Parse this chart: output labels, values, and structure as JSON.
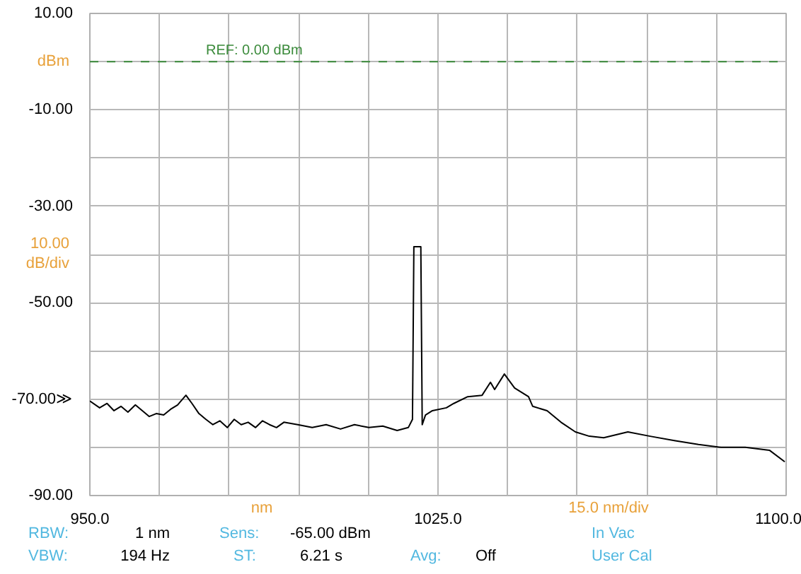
{
  "chart_data": {
    "type": "line",
    "x": [
      950.0,
      952.1,
      953.7,
      955.2,
      956.7,
      958.2,
      959.8,
      961.3,
      962.8,
      964.3,
      965.9,
      967.4,
      968.9,
      970.7,
      972.0,
      973.5,
      975.0,
      976.5,
      978.0,
      979.6,
      981.1,
      982.6,
      984.1,
      985.7,
      987.2,
      988.7,
      990.2,
      991.8,
      994.8,
      997.9,
      1000.9,
      1004.0,
      1007.0,
      1010.1,
      1013.1,
      1016.2,
      1018.6,
      1019.5,
      1019.8,
      1021.3,
      1021.6,
      1022.3,
      1023.8,
      1026.8,
      1028.4,
      1031.4,
      1034.5,
      1036.3,
      1037.2,
      1039.3,
      1041.5,
      1044.5,
      1045.4,
      1048.5,
      1051.5,
      1054.6,
      1057.6,
      1060.7,
      1065.9,
      1070.7,
      1075.9,
      1081.1,
      1086.0,
      1091.2,
      1096.4,
      1099.7
    ],
    "series": [
      {
        "color": "#000000",
        "values": [
          -70.4,
          -71.8,
          -70.9,
          -72.4,
          -71.5,
          -72.7,
          -71.2,
          -72.4,
          -73.6,
          -73.0,
          -73.3,
          -72.1,
          -71.2,
          -69.2,
          -70.9,
          -73.0,
          -74.2,
          -75.3,
          -74.5,
          -75.9,
          -74.2,
          -75.3,
          -74.8,
          -75.9,
          -74.5,
          -75.3,
          -75.9,
          -74.8,
          -75.3,
          -75.9,
          -75.3,
          -76.2,
          -75.3,
          -75.9,
          -75.6,
          -76.5,
          -75.9,
          -74.2,
          -38.4,
          -38.4,
          -75.3,
          -73.3,
          -72.4,
          -71.8,
          -70.9,
          -69.5,
          -69.2,
          -66.5,
          -68.0,
          -64.8,
          -67.7,
          -69.5,
          -71.5,
          -72.4,
          -74.8,
          -76.8,
          -77.7,
          -78.0,
          -76.8,
          -77.7,
          -78.6,
          -79.4,
          -80.0,
          -80.0,
          -80.6,
          -83.0
        ]
      }
    ],
    "xlim": [
      950,
      1100
    ],
    "ylim": [
      -90,
      10
    ],
    "xticks": [
      {
        "value": 950,
        "label": "950.0"
      },
      {
        "value": 965,
        "label": null
      },
      {
        "value": 980,
        "label": null
      },
      {
        "value": 995,
        "label": null
      },
      {
        "value": 1010,
        "label": null
      },
      {
        "value": 1025,
        "label": "1025.0"
      },
      {
        "value": 1040,
        "label": null
      },
      {
        "value": 1055,
        "label": null
      },
      {
        "value": 1070,
        "label": null
      },
      {
        "value": 1085,
        "label": null
      },
      {
        "value": 1100,
        "label": "1100.0"
      }
    ],
    "yticks": [
      {
        "value": 10,
        "label": "10.00"
      },
      {
        "value": 0,
        "label": null
      },
      {
        "value": -10,
        "label": "-10.00"
      },
      {
        "value": -20,
        "label": null
      },
      {
        "value": -30,
        "label": "-30.00"
      },
      {
        "value": -40,
        "label": null
      },
      {
        "value": -50,
        "label": "-50.00"
      },
      {
        "value": -60,
        "label": null
      },
      {
        "value": -70,
        "label": "-70.00≫"
      },
      {
        "value": -80,
        "label": null
      },
      {
        "value": -90,
        "label": "-90.00"
      }
    ],
    "grid": true,
    "line_style": "solid",
    "ref_lines": [
      {
        "axis": "y",
        "value": 0,
        "label": "REF: 0.00 dBm",
        "color": "#3a8a3a",
        "line_style": "dashed"
      }
    ],
    "annotations": [
      "dBm",
      "10.00",
      "dB/div",
      "nm",
      "15.0 nm/div",
      "RBW:",
      "1 nm",
      "Sens:",
      "-65.00 dBm",
      "In Vac",
      "VBW:",
      "194 Hz",
      "ST:",
      "6.21 s",
      "Avg:",
      "Off",
      "User Cal"
    ]
  }
}
